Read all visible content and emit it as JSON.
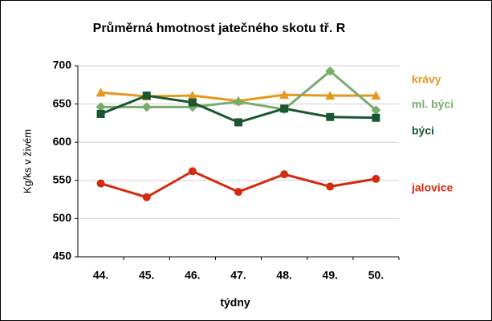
{
  "chart_data": {
    "type": "line",
    "title": "Průměrná hmotnost jatečného skotu tř. R",
    "y_label": "Kg/ks v živém",
    "x_label": "týdny",
    "categories": [
      "44.",
      "45.",
      "46.",
      "47.",
      "48.",
      "49.",
      "50."
    ],
    "ylim": [
      450,
      700
    ],
    "yticks": [
      450,
      500,
      550,
      600,
      650,
      700
    ],
    "grid": true,
    "series": [
      {
        "name": "krávy",
        "color": "#e8961e",
        "marker": "triangle",
        "values": [
          665,
          660,
          661,
          654,
          662,
          661,
          661
        ]
      },
      {
        "name": "ml. býci",
        "color": "#7aab6e",
        "marker": "diamond",
        "values": [
          646,
          646,
          646,
          653,
          643,
          693,
          642
        ]
      },
      {
        "name": "býci",
        "color": "#1a5632",
        "marker": "square",
        "values": [
          637,
          661,
          652,
          626,
          644,
          633,
          632
        ]
      },
      {
        "name": "jalovice",
        "color": "#d42a10",
        "marker": "circle",
        "values": [
          546,
          528,
          562,
          535,
          558,
          542,
          552
        ]
      }
    ]
  }
}
